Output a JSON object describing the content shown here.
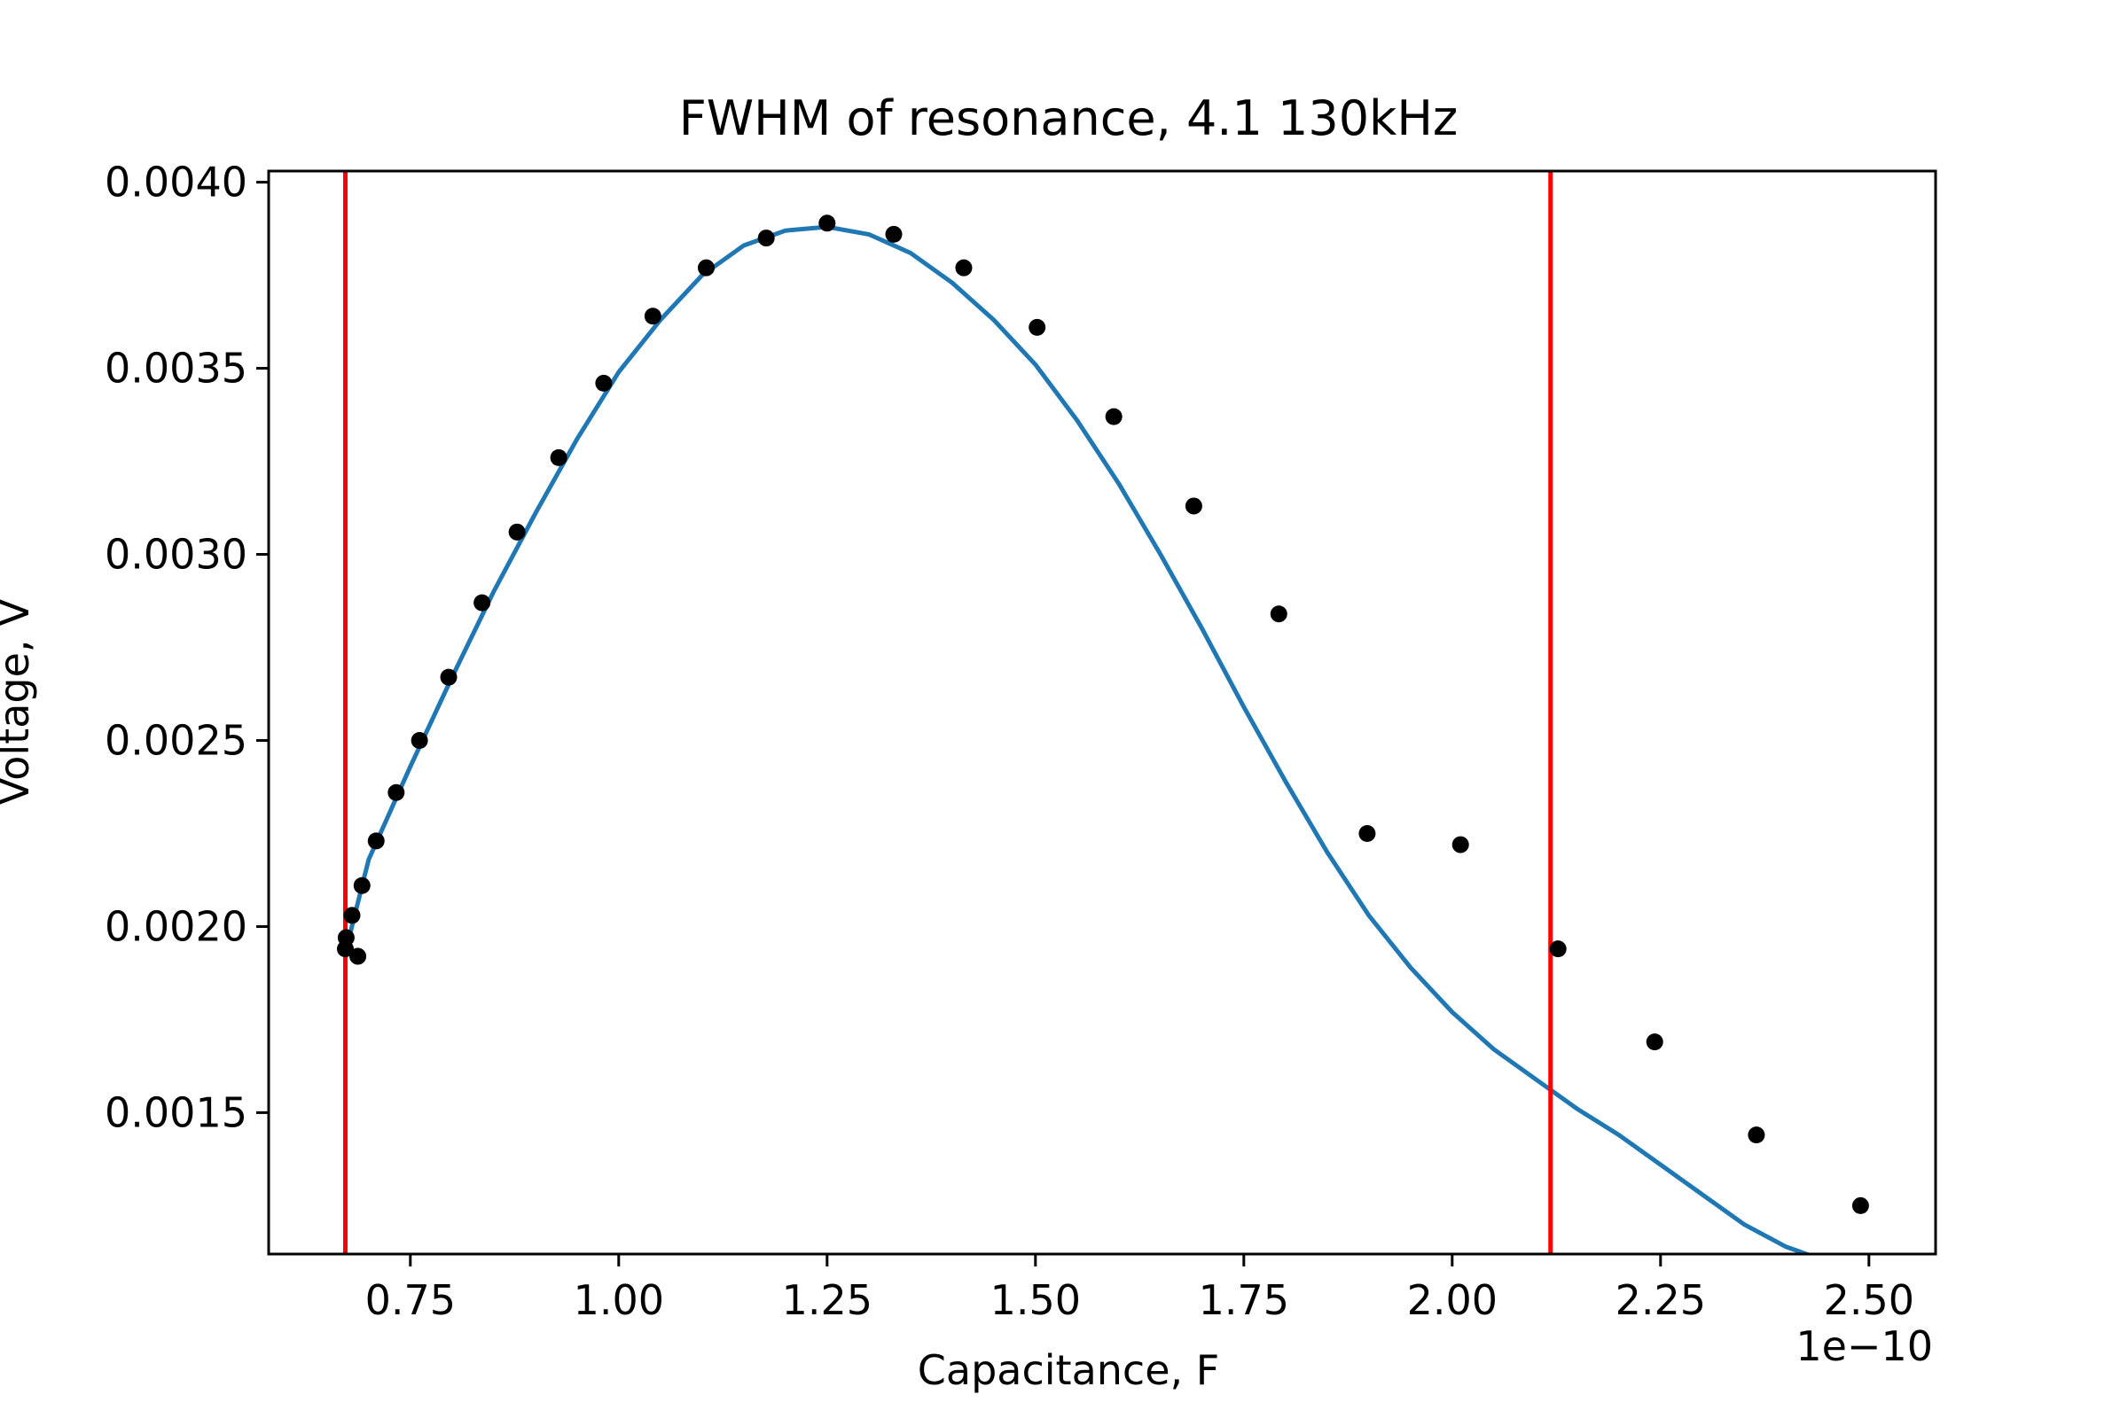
{
  "chart_data": {
    "type": "line",
    "title": "FWHM of resonance, 4.1 130kHz",
    "xlabel": "Capacitance, F",
    "ylabel": "Voltage, V",
    "x_offset_label": "1e−10",
    "x_scale": 1e-10,
    "xlim": [
      0.58,
      2.58
    ],
    "ylim": [
      0.00112,
      0.00403
    ],
    "xticks": [
      0.75,
      1.0,
      1.25,
      1.5,
      1.75,
      2.0,
      2.25,
      2.5
    ],
    "xtick_labels": [
      "0.75",
      "1.00",
      "1.25",
      "1.50",
      "1.75",
      "2.00",
      "2.25",
      "2.50"
    ],
    "yticks": [
      0.0015,
      0.002,
      0.0025,
      0.003,
      0.0035,
      0.004
    ],
    "ytick_labels": [
      "0.0015",
      "0.0020",
      "0.0025",
      "0.0030",
      "0.0035",
      "0.0040"
    ],
    "grid": false,
    "legend": null,
    "series": [
      {
        "type": "scatter",
        "color": "#000000",
        "x": [
          0.672,
          0.673,
          0.68,
          0.687,
          0.692,
          0.709,
          0.733,
          0.761,
          0.796,
          0.836,
          0.878,
          0.928,
          0.982,
          1.041,
          1.105,
          1.177,
          1.25,
          1.33,
          1.414,
          1.502,
          1.594,
          1.69,
          1.792,
          1.898,
          2.01,
          2.127,
          2.243,
          2.365,
          2.49
        ],
        "y": [
          0.00194,
          0.00197,
          0.00203,
          0.00192,
          0.00211,
          0.00223,
          0.00236,
          0.0025,
          0.00267,
          0.00287,
          0.00306,
          0.00326,
          0.00346,
          0.00364,
          0.00377,
          0.00385,
          0.00389,
          0.00386,
          0.00377,
          0.00361,
          0.00337,
          0.00313,
          0.00284,
          0.00225,
          0.00222,
          0.00194,
          0.00169,
          0.00144,
          0.00125
        ]
      },
      {
        "type": "line",
        "color": "#1f77b4",
        "x": [
          0.672,
          0.7,
          0.75,
          0.8,
          0.85,
          0.9,
          0.95,
          1.0,
          1.05,
          1.1,
          1.15,
          1.2,
          1.25,
          1.3,
          1.35,
          1.4,
          1.45,
          1.5,
          1.55,
          1.6,
          1.65,
          1.7,
          1.75,
          1.8,
          1.85,
          1.9,
          1.95,
          2.0,
          2.05,
          2.1,
          2.15,
          2.2,
          2.25,
          2.3,
          2.35,
          2.4,
          2.45,
          2.49
        ],
        "y": [
          0.00193,
          0.00218,
          0.00243,
          0.00267,
          0.0029,
          0.00311,
          0.00331,
          0.00349,
          0.00363,
          0.00375,
          0.00383,
          0.00387,
          0.00388,
          0.00386,
          0.00381,
          0.00373,
          0.00363,
          0.00351,
          0.00336,
          0.00319,
          0.003,
          0.0028,
          0.00259,
          0.00239,
          0.0022,
          0.00203,
          0.00189,
          0.00177,
          0.00167,
          0.00159,
          0.00151,
          0.00144,
          0.00136,
          0.00128,
          0.0012,
          0.00114,
          0.0011,
          0.00108
        ]
      }
    ],
    "vlines": [
      {
        "x": 0.672,
        "color": "#ff0000"
      },
      {
        "x": 2.118,
        "color": "#ff0000"
      }
    ]
  }
}
